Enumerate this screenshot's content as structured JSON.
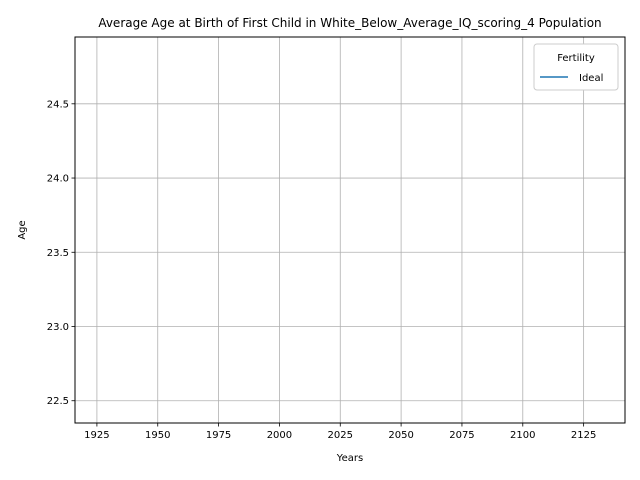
{
  "chart_data": {
    "type": "line",
    "title": "Average Age at Birth of First Child in White_Below_Average_IQ_scoring_4 Population",
    "xlabel": "Years",
    "ylabel": "Age",
    "xlim": [
      1916,
      2142
    ],
    "ylim": [
      22.35,
      24.95
    ],
    "x_ticks": [
      1925,
      1950,
      1975,
      2000,
      2025,
      2050,
      2075,
      2100,
      2125
    ],
    "y_ticks": [
      22.5,
      23.0,
      23.5,
      24.0,
      24.5
    ],
    "x_tick_labels": [
      "1925",
      "1950",
      "1975",
      "2000",
      "2025",
      "2050",
      "2075",
      "2100",
      "2125"
    ],
    "y_tick_labels": [
      "22.5",
      "23.0",
      "23.5",
      "24.0",
      "24.5"
    ],
    "grid": true,
    "legend": {
      "title": "Fertility",
      "placement": "top-right"
    },
    "series": [
      {
        "name": "Ideal",
        "color": "#1f77b4",
        "x": [],
        "y": []
      }
    ]
  }
}
